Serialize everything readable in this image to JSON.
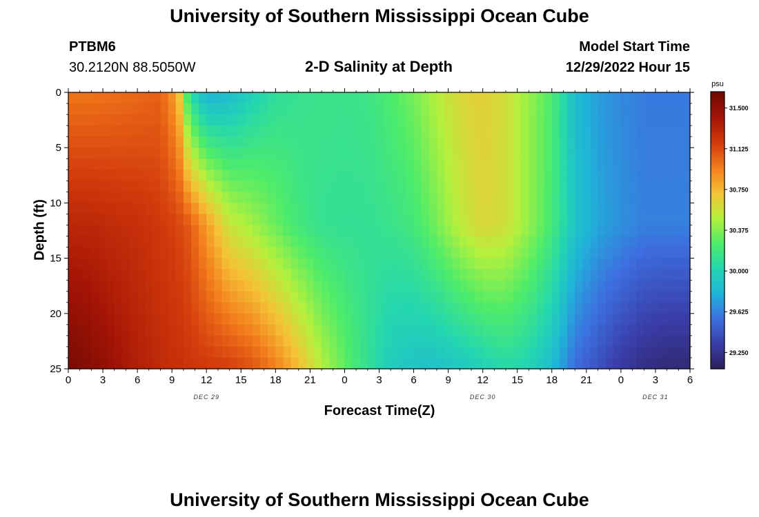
{
  "page": {
    "title": "University of Southern Mississippi Ocean Cube",
    "footer_title": "University of Southern Mississippi Ocean Cube",
    "station": "PTBM6",
    "coordinates": "30.2120N  88.5050W",
    "subtitle": "2-D Salinity at Depth",
    "model_start_label": "Model Start Time",
    "model_start_value": "12/29/2022 Hour 15"
  },
  "chart_data": {
    "type": "heatmap",
    "title": "2-D Salinity at Depth",
    "xlabel": "Forecast Time(Z)",
    "ylabel": "Depth (ft)",
    "x_ticks": [
      "0",
      "3",
      "6",
      "9",
      "12",
      "15",
      "18",
      "21",
      "0",
      "3",
      "6",
      "9",
      "12",
      "15",
      "18",
      "21",
      "0",
      "3",
      "6"
    ],
    "x_date_labels": [
      {
        "label": "DEC 29",
        "at_hour": 12
      },
      {
        "label": "DEC 30",
        "at_hour": 36
      },
      {
        "label": "DEC 31",
        "at_hour": 51
      }
    ],
    "x_range_hours": [
      0,
      54
    ],
    "y_ticks": [
      "0",
      "5",
      "10",
      "15",
      "20",
      "25"
    ],
    "y_range": [
      0,
      25
    ],
    "y_inverted": true,
    "colorbar": {
      "unit": "psu",
      "min": 29.1,
      "max": 31.65,
      "ticks": [
        "31.500",
        "31.125",
        "30.750",
        "30.375",
        "30.000",
        "29.625",
        "29.250"
      ],
      "tick_values": [
        31.5,
        31.125,
        30.75,
        30.375,
        30.0,
        29.625,
        29.25
      ],
      "colors": [
        "#2c1f5a",
        "#3a3da8",
        "#3d6fe0",
        "#1fb4d8",
        "#24d6b0",
        "#4eec6a",
        "#b5f03c",
        "#f5c236",
        "#f37c1c",
        "#d23a0c",
        "#a31405",
        "#700a03"
      ]
    },
    "salinity_columns_psu": {
      "hours": [
        0,
        2,
        4,
        6,
        8,
        9.5,
        10.5,
        12,
        14,
        16,
        18,
        20,
        22,
        24,
        26,
        28,
        30,
        32,
        34,
        36,
        38,
        40,
        42,
        44,
        46,
        48,
        50,
        52,
        54
      ],
      "surface": [
        30.98,
        30.98,
        31.0,
        31.02,
        31.05,
        30.8,
        30.1,
        29.78,
        29.85,
        29.98,
        30.1,
        30.13,
        30.16,
        30.15,
        30.17,
        30.25,
        30.35,
        30.5,
        30.62,
        30.66,
        30.58,
        30.42,
        30.25,
        29.85,
        29.72,
        29.65,
        29.6,
        29.6,
        29.6
      ],
      "mid_12ft": [
        31.3,
        31.3,
        31.27,
        31.25,
        31.2,
        31.15,
        31.08,
        30.85,
        30.55,
        30.45,
        30.32,
        30.2,
        30.13,
        30.12,
        30.12,
        30.15,
        30.2,
        30.35,
        30.52,
        30.63,
        30.58,
        30.42,
        30.22,
        29.9,
        29.75,
        29.68,
        29.62,
        29.62,
        29.62
      ],
      "bottom": [
        31.62,
        31.55,
        31.45,
        31.35,
        31.28,
        31.25,
        31.22,
        31.2,
        31.18,
        31.1,
        30.95,
        30.75,
        30.5,
        30.3,
        30.12,
        29.95,
        29.9,
        29.88,
        29.92,
        29.98,
        30.05,
        30.0,
        29.85,
        29.55,
        29.42,
        29.3,
        29.22,
        29.18,
        29.18
      ]
    }
  }
}
